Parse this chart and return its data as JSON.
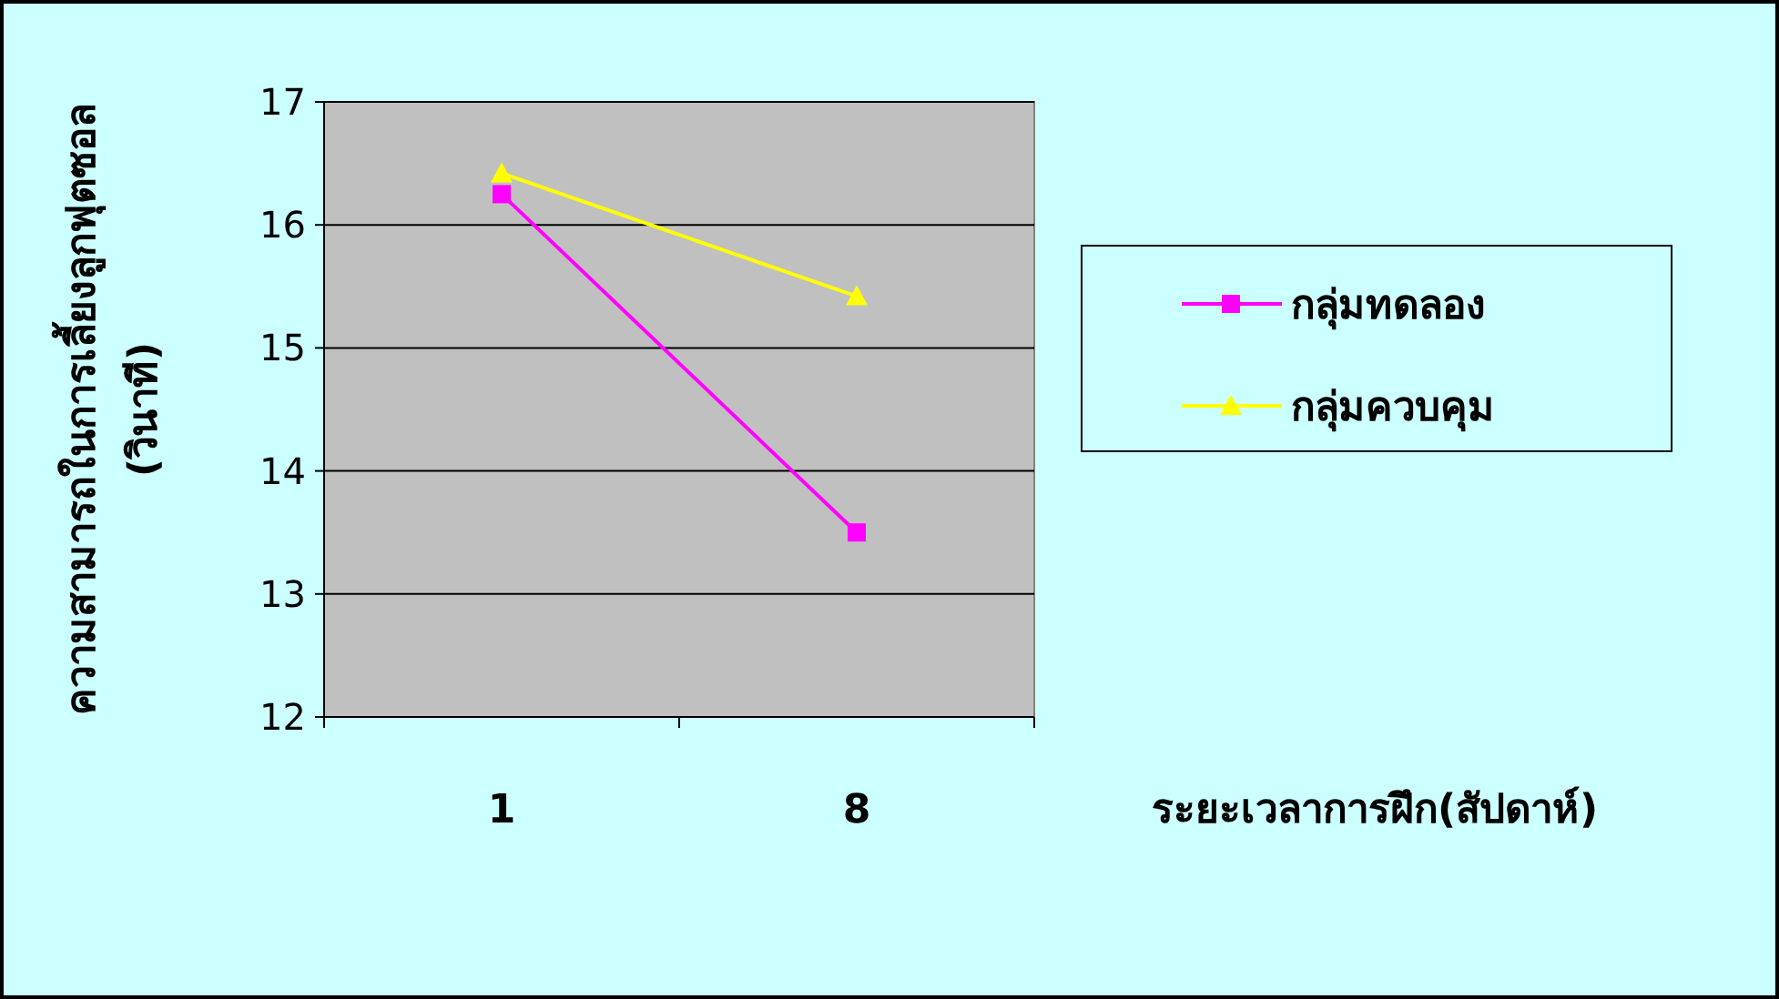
{
  "chart_data": {
    "type": "line",
    "ylabel": "ความสามารถในการเลี้ยงลูกฟุตซอล (วินาที)",
    "xlabel": "ระยะเวลาการฝึก(สัปดาห์)",
    "categories": [
      "1",
      "8"
    ],
    "series": [
      {
        "name": "กลุ่มทดลอง",
        "color": "#ff00ff",
        "marker": "square",
        "values": [
          16.25,
          13.5
        ]
      },
      {
        "name": "กลุ่มควบคุม",
        "color": "#ffff00",
        "marker": "triangle",
        "values": [
          16.42,
          15.42
        ]
      }
    ],
    "ylim": [
      12,
      17
    ],
    "yticks": [
      12,
      13,
      14,
      15,
      16,
      17
    ],
    "grid": "y",
    "legend": "right"
  }
}
